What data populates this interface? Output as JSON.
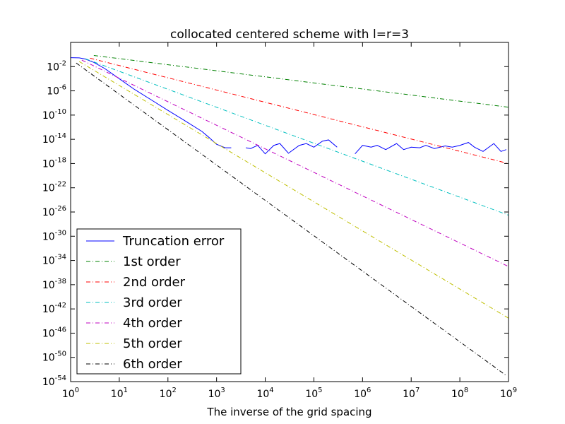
{
  "chart_data": {
    "type": "line",
    "title": "collocated centered scheme with l=r=3",
    "xlabel": "The inverse of the grid spacing",
    "ylabel": "",
    "x_scale": "log",
    "y_scale": "log",
    "xlim": [
      1,
      1000000000
    ],
    "ylim": [
      1e-54,
      100.0
    ],
    "x_ticks": [
      {
        "base": "10",
        "exp": "0"
      },
      {
        "base": "10",
        "exp": "1"
      },
      {
        "base": "10",
        "exp": "2"
      },
      {
        "base": "10",
        "exp": "3"
      },
      {
        "base": "10",
        "exp": "4"
      },
      {
        "base": "10",
        "exp": "5"
      },
      {
        "base": "10",
        "exp": "6"
      },
      {
        "base": "10",
        "exp": "7"
      },
      {
        "base": "10",
        "exp": "8"
      },
      {
        "base": "10",
        "exp": "9"
      }
    ],
    "y_ticks": [
      {
        "base": "10",
        "exp": "-2"
      },
      {
        "base": "10",
        "exp": "-6"
      },
      {
        "base": "10",
        "exp": "-10"
      },
      {
        "base": "10",
        "exp": "-14"
      },
      {
        "base": "10",
        "exp": "-18"
      },
      {
        "base": "10",
        "exp": "-22"
      },
      {
        "base": "10",
        "exp": "-26"
      },
      {
        "base": "10",
        "exp": "-30"
      },
      {
        "base": "10",
        "exp": "-34"
      },
      {
        "base": "10",
        "exp": "-38"
      },
      {
        "base": "10",
        "exp": "-42"
      },
      {
        "base": "10",
        "exp": "-46"
      },
      {
        "base": "10",
        "exp": "-50"
      },
      {
        "base": "10",
        "exp": "-54"
      }
    ],
    "grid": false,
    "legend_position": "lower-left",
    "series": [
      {
        "name": "Truncation error",
        "color": "#0000ff",
        "style": "solid",
        "x": [
          1,
          1.5,
          2,
          3,
          5,
          10,
          20,
          50,
          100,
          200,
          500,
          700,
          1000,
          1500,
          2000,
          3000,
          4000,
          5000,
          7000,
          10000,
          15000,
          20000,
          30000,
          50000,
          70000,
          100000,
          150000,
          200000,
          300000,
          500000,
          700000,
          1000000,
          1500000,
          2000000,
          3000000,
          5000000,
          7000000,
          10000000,
          15000000,
          20000000,
          30000000,
          50000000,
          70000000,
          100000000,
          150000000,
          200000000,
          300000000,
          500000000,
          700000000,
          900000000
        ],
        "y": [
          0.3,
          0.28,
          0.18,
          0.05,
          0.005,
          0.0001,
          2e-06,
          2e-08,
          6e-10,
          2e-11,
          2e-13,
          2e-14,
          1.5e-15,
          4e-16,
          4e-16,
          null,
          4e-16,
          3e-16,
          1e-15,
          4e-17,
          1e-15,
          2e-15,
          5e-17,
          1e-15,
          2e-15,
          5e-16,
          5e-15,
          8e-15,
          5e-16,
          null,
          4e-17,
          1e-15,
          5e-16,
          1e-15,
          2e-16,
          2e-15,
          2e-16,
          5e-16,
          4e-16,
          1e-15,
          3e-16,
          8e-16,
          5e-16,
          1e-15,
          3e-15,
          5e-16,
          1e-16,
          2e-15,
          1e-16,
          2e-16
        ]
      },
      {
        "name": "1st order",
        "color": "#008000",
        "style": "dashdot",
        "x": [
          3,
          1000000000
        ],
        "y": [
          0.7,
          2e-09
        ]
      },
      {
        "name": "2nd order",
        "color": "#ff0000",
        "style": "dashdot",
        "x": [
          2.5,
          1000000000
        ],
        "y": [
          0.25,
          1e-18
        ]
      },
      {
        "name": "3rd order",
        "color": "#00bfbf",
        "style": "dashdot",
        "x": [
          2,
          1000000000
        ],
        "y": [
          0.2,
          3e-27
        ]
      },
      {
        "name": "4th order",
        "color": "#bf00bf",
        "style": "dashdot",
        "x": [
          1.7,
          1000000000
        ],
        "y": [
          0.12,
          1e-35
        ]
      },
      {
        "name": "5th order",
        "color": "#bfbf00",
        "style": "dashdot",
        "x": [
          1.5,
          1000000000
        ],
        "y": [
          0.07,
          3e-44
        ]
      },
      {
        "name": "6th order",
        "color": "#000000",
        "style": "dashdot",
        "x": [
          1.3,
          900000000
        ],
        "y": [
          0.04,
          1e-53
        ]
      }
    ]
  }
}
